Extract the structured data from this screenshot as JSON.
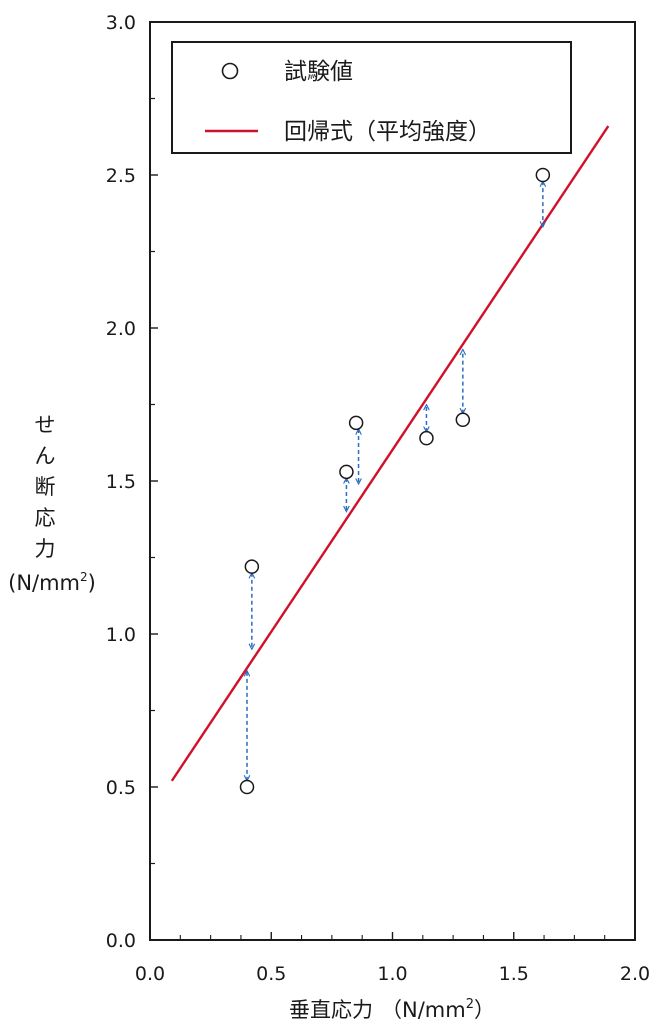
{
  "chart_data": {
    "type": "scatter",
    "xlabel": {
      "main": "垂直応力",
      "unit_open": "（N/mm",
      "unit_sup": "2",
      "unit_close": "）"
    },
    "ylabel": {
      "lines": [
        "せ",
        "ん",
        "断",
        "応",
        "力"
      ],
      "unit_open": "(N/mm",
      "unit_sup": "2",
      "unit_close": ")"
    },
    "xlim": [
      0.0,
      2.0
    ],
    "ylim": [
      0.0,
      3.0
    ],
    "xticks": [
      0.0,
      0.5,
      1.0,
      1.5,
      2.0
    ],
    "yticks": [
      0.0,
      0.5,
      1.0,
      1.5,
      2.0,
      2.5,
      3.0
    ],
    "xtick_labels": [
      "0.0",
      "0.5",
      "1.0",
      "1.5",
      "2.0"
    ],
    "ytick_labels": [
      "0.0",
      "0.5",
      "1.0",
      "1.5",
      "2.0",
      "2.5",
      "3.0"
    ],
    "grid": false,
    "legend_position": "top-left",
    "series": [
      {
        "name": "試験値",
        "type": "scatter",
        "marker": "open-circle",
        "color": "#1a1a1a",
        "points": [
          {
            "x": 0.42,
            "y": 1.22
          },
          {
            "x": 0.4,
            "y": 0.5
          },
          {
            "x": 0.81,
            "y": 1.53
          },
          {
            "x": 0.85,
            "y": 1.69
          },
          {
            "x": 1.14,
            "y": 1.64
          },
          {
            "x": 1.29,
            "y": 1.7
          },
          {
            "x": 1.62,
            "y": 2.5
          }
        ]
      },
      {
        "name": "回帰式（平均強度）",
        "type": "line",
        "color": "#d0112b",
        "points": [
          {
            "x": 0.09,
            "y": 0.52
          },
          {
            "x": 1.89,
            "y": 2.66
          }
        ]
      }
    ],
    "residual_arrows": {
      "color": "#2b6cc4",
      "style": "dashed-double-arrow",
      "segments": [
        {
          "x": 0.42,
          "y1": 1.2,
          "y2": 0.95
        },
        {
          "x": 0.4,
          "y1": 0.52,
          "y2": 0.88
        },
        {
          "x": 0.81,
          "y1": 1.51,
          "y2": 1.4
        },
        {
          "x": 0.86,
          "y1": 1.67,
          "y2": 1.49
        },
        {
          "x": 1.14,
          "y1": 1.66,
          "y2": 1.75
        },
        {
          "x": 1.29,
          "y1": 1.72,
          "y2": 1.93
        },
        {
          "x": 1.62,
          "y1": 2.48,
          "y2": 2.33
        }
      ]
    }
  }
}
